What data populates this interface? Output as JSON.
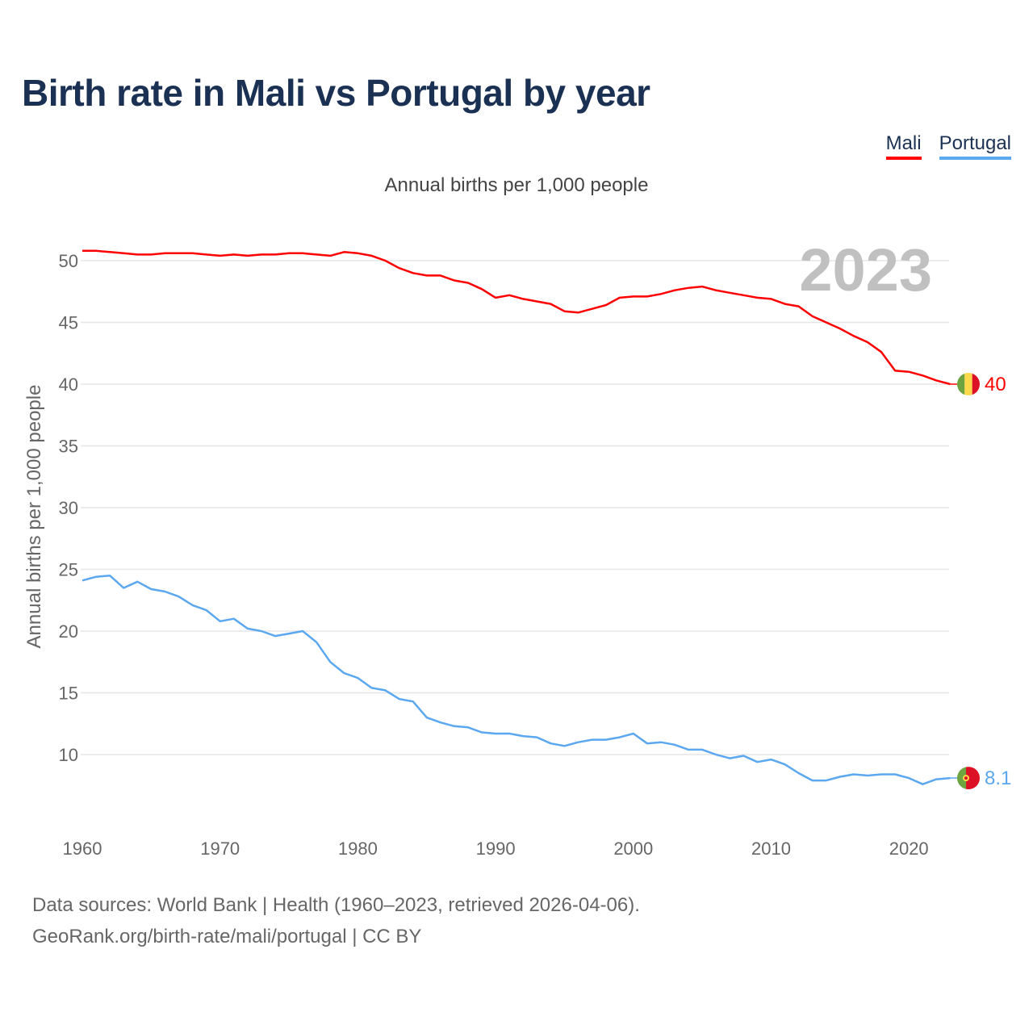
{
  "title": "Birth rate in Mali vs Portugal by year",
  "subtitle": "Annual births per 1,000 people",
  "footer": {
    "line1": "Data sources: World Bank | Health (1960–2023, retrieved 2026-04-06).",
    "line2": "GeoRank.org/birth-rate/mali/portugal | CC BY"
  },
  "year_label": "2023",
  "chart_data": {
    "type": "line",
    "title": "Birth rate in Mali vs Portugal by year",
    "xlabel": "",
    "ylabel": "Annual births per 1,000 people",
    "xlim": [
      1960,
      2023
    ],
    "ylim": [
      5,
      52
    ],
    "xticks": [
      1960,
      1970,
      1980,
      1990,
      2000,
      2010,
      2020
    ],
    "yticks": [
      10,
      15,
      20,
      25,
      30,
      35,
      40,
      45,
      50
    ],
    "grid": true,
    "legend_position": "top-right",
    "x": [
      1960,
      1961,
      1962,
      1963,
      1964,
      1965,
      1966,
      1967,
      1968,
      1969,
      1970,
      1971,
      1972,
      1973,
      1974,
      1975,
      1976,
      1977,
      1978,
      1979,
      1980,
      1981,
      1982,
      1983,
      1984,
      1985,
      1986,
      1987,
      1988,
      1989,
      1990,
      1991,
      1992,
      1993,
      1994,
      1995,
      1996,
      1997,
      1998,
      1999,
      2000,
      2001,
      2002,
      2003,
      2004,
      2005,
      2006,
      2007,
      2008,
      2009,
      2010,
      2011,
      2012,
      2013,
      2014,
      2015,
      2016,
      2017,
      2018,
      2019,
      2020,
      2021,
      2022,
      2023
    ],
    "series": [
      {
        "name": "Mali",
        "color": "#ff0000",
        "end_label": "40",
        "values": [
          50.8,
          50.8,
          50.7,
          50.6,
          50.5,
          50.5,
          50.6,
          50.6,
          50.6,
          50.5,
          50.4,
          50.5,
          50.4,
          50.5,
          50.5,
          50.6,
          50.6,
          50.5,
          50.4,
          50.7,
          50.6,
          50.4,
          50.0,
          49.4,
          49.0,
          48.8,
          48.8,
          48.4,
          48.2,
          47.7,
          47.0,
          47.2,
          46.9,
          46.7,
          46.5,
          45.9,
          45.8,
          46.1,
          46.4,
          47.0,
          47.1,
          47.1,
          47.3,
          47.6,
          47.8,
          47.9,
          47.6,
          47.4,
          47.2,
          47.0,
          46.9,
          46.5,
          46.3,
          45.5,
          45.0,
          44.5,
          43.9,
          43.4,
          42.6,
          41.1,
          41.0,
          40.7,
          40.3,
          40.0
        ]
      },
      {
        "name": "Portugal",
        "color": "#5ba8f0",
        "end_label": "8.1",
        "values": [
          24.1,
          24.4,
          24.5,
          23.5,
          24.0,
          23.4,
          23.2,
          22.8,
          22.1,
          21.7,
          20.8,
          21.0,
          20.2,
          20.0,
          19.6,
          19.8,
          20.0,
          19.1,
          17.5,
          16.6,
          16.2,
          15.4,
          15.2,
          14.5,
          14.3,
          13.0,
          12.6,
          12.3,
          12.2,
          11.8,
          11.7,
          11.7,
          11.5,
          11.4,
          10.9,
          10.7,
          11.0,
          11.2,
          11.2,
          11.4,
          11.7,
          10.9,
          11.0,
          10.8,
          10.4,
          10.4,
          10.0,
          9.7,
          9.9,
          9.4,
          9.6,
          9.2,
          8.5,
          7.9,
          7.9,
          8.2,
          8.4,
          8.3,
          8.4,
          8.4,
          8.1,
          7.6,
          8.0,
          8.1
        ]
      }
    ]
  }
}
